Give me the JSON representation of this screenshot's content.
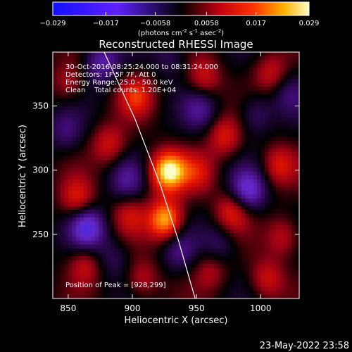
{
  "chart_data": {
    "type": "heatmap",
    "title": "Reconstructed RHESSI Image",
    "xlabel": "Heliocentric X (arcsec)",
    "ylabel": "Heliocentric Y (arcsec)",
    "xlim": [
      838,
      1030
    ],
    "ylim": [
      200,
      392
    ],
    "x_ticks": [
      {
        "value": 850,
        "label": "850"
      },
      {
        "value": 900,
        "label": "900"
      },
      {
        "value": 950,
        "label": "950"
      },
      {
        "value": 1000,
        "label": "1000"
      }
    ],
    "y_ticks": [
      {
        "value": 250,
        "label": "250"
      },
      {
        "value": 300,
        "label": "300"
      },
      {
        "value": 350,
        "label": "350"
      }
    ],
    "colorbar": {
      "min": -0.029,
      "max": 0.029,
      "ticks": [
        {
          "value": -0.029,
          "label": "−0.029"
        },
        {
          "value": -0.017,
          "label": "−0.017"
        },
        {
          "value": -0.0058,
          "label": "−0.0058"
        },
        {
          "value": 0.0058,
          "label": "0.0058"
        },
        {
          "value": 0.017,
          "label": "0.017"
        },
        {
          "value": 0.029,
          "label": "0.029"
        }
      ],
      "units": "(photons cm",
      "units_exp1": "-2",
      "units_mid": " s",
      "units_exp2": "-1",
      "units_end": " asec",
      "units_exp3": "-2",
      "units_close": ")"
    },
    "annotations": [
      "30-Oct-2016 08:25:24.000 to 08:31:24.000",
      "Detectors: 1F 5F 7F, Att 0",
      "Energy Range: 25.0 - 50.0 keV",
      "Clean    Total counts: 1.20E+04"
    ],
    "peak_label": "Position of Peak = [928,299]",
    "peak": {
      "x": 928,
      "y": 299,
      "value": 0.029
    },
    "sources": [
      {
        "x": 928,
        "y": 299,
        "value": 0.029
      },
      {
        "x": 926,
        "y": 261,
        "value": 0.025
      },
      {
        "x": 903,
        "y": 358,
        "value": 0.014
      },
      {
        "x": 956,
        "y": 372,
        "value": 0.012
      },
      {
        "x": 1008,
        "y": 376,
        "value": 0.011
      },
      {
        "x": 882,
        "y": 320,
        "value": 0.012
      },
      {
        "x": 972,
        "y": 326,
        "value": 0.013
      },
      {
        "x": 1014,
        "y": 304,
        "value": 0.012
      },
      {
        "x": 952,
        "y": 298,
        "value": 0.01
      },
      {
        "x": 857,
        "y": 278,
        "value": 0.013
      },
      {
        "x": 898,
        "y": 265,
        "value": 0.01
      },
      {
        "x": 978,
        "y": 268,
        "value": 0.014
      },
      {
        "x": 1018,
        "y": 248,
        "value": 0.011
      },
      {
        "x": 863,
        "y": 226,
        "value": 0.011
      },
      {
        "x": 908,
        "y": 215,
        "value": 0.01
      },
      {
        "x": 961,
        "y": 222,
        "value": 0.009
      },
      {
        "x": 1005,
        "y": 215,
        "value": 0.012
      },
      {
        "x": 850,
        "y": 368,
        "value": 0.009
      },
      {
        "x": 865,
        "y": 255,
        "value": -0.02
      },
      {
        "x": 990,
        "y": 284,
        "value": -0.018
      },
      {
        "x": 896,
        "y": 292,
        "value": -0.01
      },
      {
        "x": 953,
        "y": 348,
        "value": -0.01
      },
      {
        "x": 876,
        "y": 384,
        "value": -0.014
      },
      {
        "x": 996,
        "y": 344,
        "value": -0.009
      },
      {
        "x": 936,
        "y": 238,
        "value": -0.009
      },
      {
        "x": 968,
        "y": 242,
        "value": -0.008
      },
      {
        "x": 848,
        "y": 330,
        "value": -0.008
      },
      {
        "x": 885,
        "y": 232,
        "value": -0.007
      },
      {
        "x": 1022,
        "y": 360,
        "value": -0.007
      },
      {
        "x": 930,
        "y": 390,
        "value": -0.007
      }
    ],
    "limb_curve": [
      {
        "x": 878,
        "y": 392
      },
      {
        "x": 902,
        "y": 340
      },
      {
        "x": 922,
        "y": 288
      },
      {
        "x": 936,
        "y": 245
      },
      {
        "x": 946,
        "y": 210
      },
      {
        "x": 949,
        "y": 200
      }
    ]
  },
  "footer": {
    "date": "23-May-2022 23:58"
  }
}
